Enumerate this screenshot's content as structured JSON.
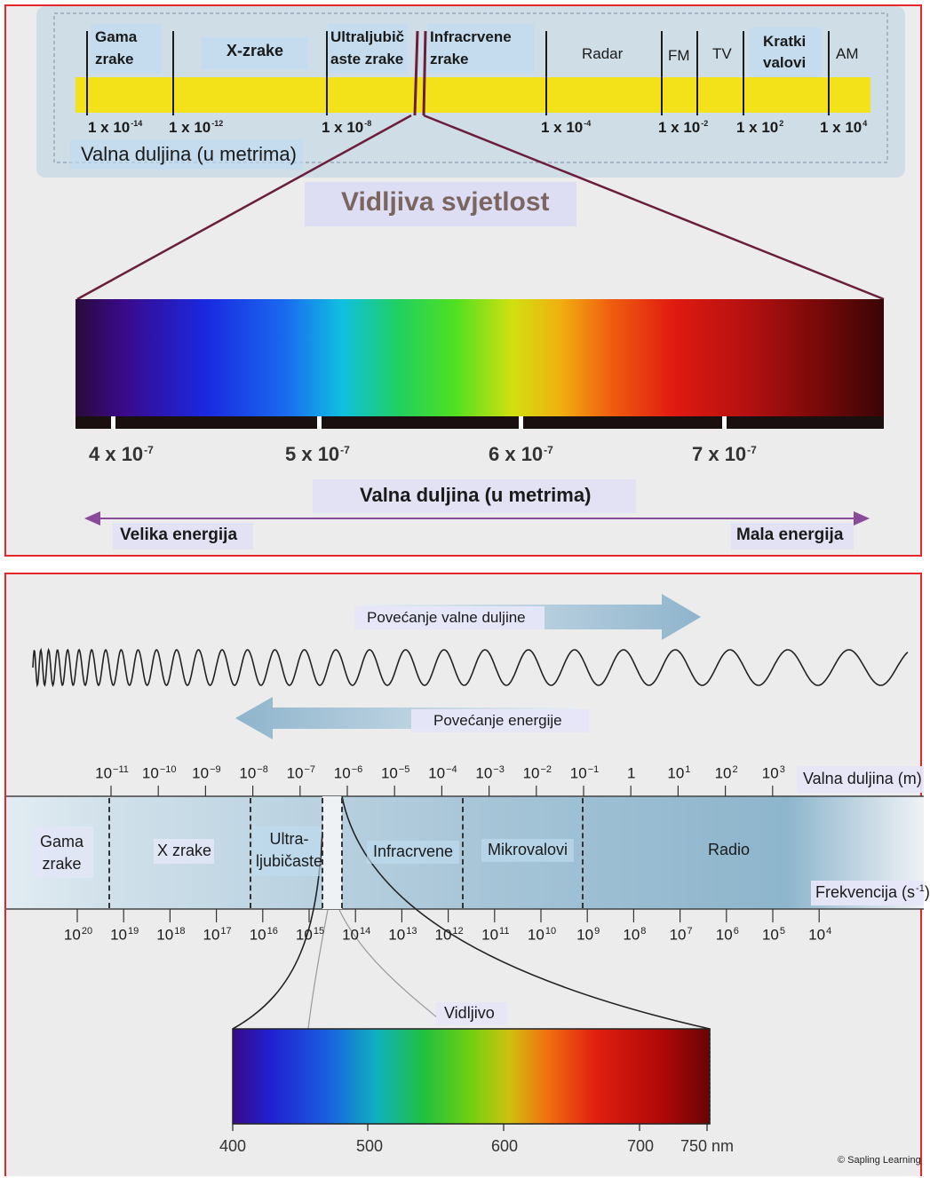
{
  "top": {
    "bands": [
      {
        "id": "gamma",
        "lines": [
          "Gama",
          "zrake"
        ]
      },
      {
        "id": "xray",
        "lines": [
          "X-zrake"
        ]
      },
      {
        "id": "uv",
        "lines": [
          "Ultraljubič",
          "aste zrake"
        ]
      },
      {
        "id": "ir",
        "lines": [
          "Infracrvene",
          "zrake"
        ]
      },
      {
        "id": "radar",
        "lines": [
          "Radar"
        ]
      },
      {
        "id": "fm",
        "lines": [
          "FM"
        ]
      },
      {
        "id": "tv",
        "lines": [
          "TV"
        ]
      },
      {
        "id": "shortwave",
        "lines": [
          "Kratki",
          "valovi"
        ]
      },
      {
        "id": "am",
        "lines": [
          "AM"
        ]
      }
    ],
    "wavelength_ticks": [
      {
        "base": "1 x 10",
        "exp": "-14"
      },
      {
        "base": "1 x 10",
        "exp": "-12"
      },
      {
        "base": "1 x 10",
        "exp": "-8"
      },
      {
        "base": "1 x 10",
        "exp": "-4"
      },
      {
        "base": "1 x 10",
        "exp": "-2"
      },
      {
        "base": "1 x 10",
        "exp": "2"
      },
      {
        "base": "1 x 10",
        "exp": "4"
      }
    ],
    "axis_label": "Valna duljina (u metrima)",
    "visible_title": "Vidljiva svjetlost",
    "spectrum_ticks": [
      {
        "base": "4 x 10",
        "exp": "-7"
      },
      {
        "base": "5 x 10",
        "exp": "-7"
      },
      {
        "base": "6 x 10",
        "exp": "-7"
      },
      {
        "base": "7 x 10",
        "exp": "-7"
      }
    ],
    "spectrum_axis_label": "Valna duljina (u metrima)",
    "energy_left": "Velika energija",
    "energy_right": "Mala energija"
  },
  "bottom": {
    "arrow_wavelength": "Povećanje valne duljine",
    "arrow_energy": "Povećanje energije",
    "wavelength_ticks": [
      {
        "base": "10",
        "exp": "−11"
      },
      {
        "base": "10",
        "exp": "−10"
      },
      {
        "base": "10",
        "exp": "−9"
      },
      {
        "base": "10",
        "exp": "−8"
      },
      {
        "base": "10",
        "exp": "−7"
      },
      {
        "base": "10",
        "exp": "−6"
      },
      {
        "base": "10",
        "exp": "−5"
      },
      {
        "base": "10",
        "exp": "−4"
      },
      {
        "base": "10",
        "exp": "−3"
      },
      {
        "base": "10",
        "exp": "−2"
      },
      {
        "base": "10",
        "exp": "−1"
      },
      {
        "base": "1",
        "exp": ""
      },
      {
        "base": "10",
        "exp": "1"
      },
      {
        "base": "10",
        "exp": "2"
      },
      {
        "base": "10",
        "exp": "3"
      }
    ],
    "wavelength_unit": "Valna duljina (m)",
    "regions": [
      {
        "id": "gamma",
        "lines": [
          "Gama",
          "zrake"
        ]
      },
      {
        "id": "xray",
        "lines": [
          "X zrake"
        ]
      },
      {
        "id": "uv",
        "lines": [
          "Ultra-",
          "ljubičaste"
        ]
      },
      {
        "id": "ir",
        "lines": [
          "Infracrvene"
        ]
      },
      {
        "id": "micro",
        "lines": [
          "Mikrovalovi"
        ]
      },
      {
        "id": "radio",
        "lines": [
          "Radio"
        ]
      }
    ],
    "frequency_unit": "Frekvencija (s",
    "frequency_unit_exp": "-1",
    "frequency_unit_close": ")",
    "frequency_ticks": [
      {
        "base": "10",
        "exp": "20"
      },
      {
        "base": "10",
        "exp": "19"
      },
      {
        "base": "10",
        "exp": "18"
      },
      {
        "base": "10",
        "exp": "17"
      },
      {
        "base": "10",
        "exp": "16"
      },
      {
        "base": "10",
        "exp": "15"
      },
      {
        "base": "10",
        "exp": "14"
      },
      {
        "base": "10",
        "exp": "13"
      },
      {
        "base": "10",
        "exp": "12"
      },
      {
        "base": "10",
        "exp": "11"
      },
      {
        "base": "10",
        "exp": "10"
      },
      {
        "base": "10",
        "exp": "9"
      },
      {
        "base": "10",
        "exp": "8"
      },
      {
        "base": "10",
        "exp": "7"
      },
      {
        "base": "10",
        "exp": "6"
      },
      {
        "base": "10",
        "exp": "5"
      },
      {
        "base": "10",
        "exp": "4"
      }
    ],
    "visible_label": "Vidljivo",
    "nm_ticks": [
      "400",
      "500",
      "600",
      "700",
      "750 nm"
    ],
    "credit": "© Sapling Learning"
  }
}
